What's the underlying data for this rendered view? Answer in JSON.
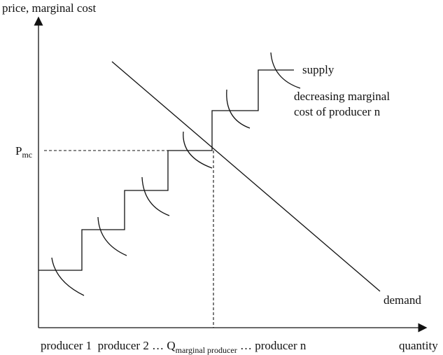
{
  "labels": {
    "y_axis": "price, marginal cost",
    "x_axis": "quantity",
    "pmc_main": "P",
    "pmc_sub": "mc",
    "supply": "supply",
    "note_line1": "decreasing marginal",
    "note_line2": "cost of producer n",
    "demand": "demand",
    "bottom_part1": "producer 1  producer 2 … Q",
    "bottom_sub": "marginal producer",
    "bottom_part2": " … producer n"
  }
}
